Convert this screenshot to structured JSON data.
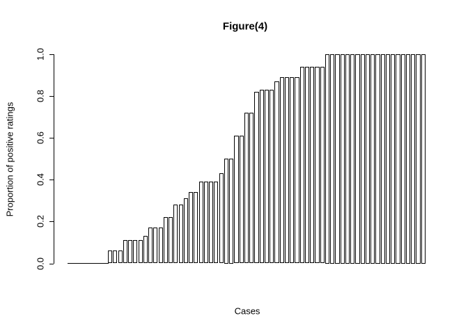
{
  "figure": {
    "title": "Figure(4)",
    "x_axis_label": "Cases",
    "y_axis_label": "Proportion of positive ratings"
  },
  "colors": {
    "background": "#ffffff",
    "bar_fill": "#ffffff",
    "bar_border": "#000000",
    "axis": "#000000",
    "text": "#000000"
  },
  "chart_data": {
    "type": "bar",
    "title": "Figure(4)",
    "xlabel": "Cases",
    "ylabel": "Proportion of positive ratings",
    "ylim": [
      0,
      1.0
    ],
    "grid": false,
    "legend": false,
    "sorted_ascending": true,
    "x_tick_labels": [],
    "y_ticks": [
      {
        "label": "0.0",
        "value": 0.0
      },
      {
        "label": "0.2",
        "value": 0.2
      },
      {
        "label": "0.4",
        "value": 0.4
      },
      {
        "label": "0.6",
        "value": 0.6
      },
      {
        "label": "0.8",
        "value": 0.8
      },
      {
        "label": "1.0",
        "value": 1.0
      }
    ],
    "categories_note": "individual cases, unlabeled on x-axis",
    "values": [
      0,
      0,
      0,
      0,
      0,
      0,
      0,
      0,
      0.06,
      0.06,
      0.06,
      0.11,
      0.11,
      0.11,
      0.11,
      0.13,
      0.17,
      0.17,
      0.17,
      0.22,
      0.22,
      0.28,
      0.28,
      0.31,
      0.34,
      0.34,
      0.39,
      0.39,
      0.39,
      0.39,
      0.43,
      0.5,
      0.5,
      0.61,
      0.61,
      0.72,
      0.72,
      0.82,
      0.83,
      0.83,
      0.83,
      0.87,
      0.89,
      0.89,
      0.89,
      0.89,
      0.94,
      0.94,
      0.94,
      0.94,
      0.94,
      1,
      1,
      1,
      1,
      1,
      1,
      1,
      1,
      1,
      1,
      1,
      1,
      1,
      1,
      1,
      1,
      1,
      1,
      1,
      1
    ]
  }
}
